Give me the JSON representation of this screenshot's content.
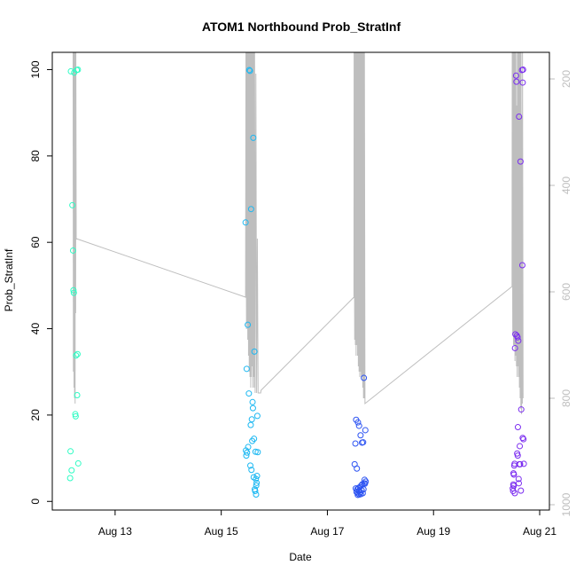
{
  "chart_data": {
    "type": "scatter",
    "title": "ATOM1 Northbound Prob_StratInf",
    "xlabel": "Date",
    "ylabel": "Prob_StratInf",
    "x_axis": {
      "type": "date",
      "range": [
        "2019-08-12T00:00",
        "2019-08-21T00:00"
      ],
      "tick_values": [
        "2019-08-13T00:00",
        "2019-08-15T00:00",
        "2019-08-17T00:00",
        "2019-08-19T00:00",
        "2019-08-21T00:00"
      ],
      "tick_labels": [
        "Aug 13",
        "Aug 15",
        "Aug 17",
        "Aug 19",
        "Aug 21"
      ]
    },
    "y_axis": {
      "range": [
        -2,
        104
      ],
      "ticks": [
        0,
        20,
        40,
        60,
        80,
        100
      ]
    },
    "y2_axis": {
      "range": [
        1010,
        150
      ],
      "reversed": true,
      "ticks": [
        200,
        400,
        600,
        800,
        1000
      ],
      "color": "#bebebe"
    },
    "grid": false,
    "legend": "none",
    "profile_series": {
      "axis": "y2",
      "color": "#bebebe",
      "data": [
        [
          "2019-08-12T05:00",
          150
        ],
        [
          "2019-08-12T05:08",
          750
        ],
        [
          "2019-08-12T05:12",
          150
        ],
        [
          "2019-08-12T05:25",
          780
        ],
        [
          "2019-08-12T05:28",
          150
        ],
        [
          "2019-08-12T05:40",
          800
        ],
        [
          "2019-08-12T05:45",
          150
        ],
        [
          "2019-08-12T05:55",
          810
        ],
        [
          "2019-08-12T06:00",
          150
        ],
        [
          "2019-08-12T06:10",
          640
        ],
        [
          "2019-08-12T06:15",
          150
        ],
        [
          "2019-08-12T06:25",
          500
        ],
        [
          "2019-08-15T11:00",
          610
        ],
        [
          "2019-08-15T11:10",
          150
        ],
        [
          "2019-08-15T11:25",
          670
        ],
        [
          "2019-08-15T11:30",
          150
        ],
        [
          "2019-08-15T11:40",
          660
        ],
        [
          "2019-08-15T11:45",
          150
        ],
        [
          "2019-08-15T12:00",
          690
        ],
        [
          "2019-08-15T12:05",
          150
        ],
        [
          "2019-08-15T12:20",
          720
        ],
        [
          "2019-08-15T12:25",
          150
        ],
        [
          "2019-08-15T12:40",
          750
        ],
        [
          "2019-08-15T12:45",
          150
        ],
        [
          "2019-08-15T13:00",
          760
        ],
        [
          "2019-08-15T13:05",
          150
        ],
        [
          "2019-08-15T13:20",
          780
        ],
        [
          "2019-08-15T13:25",
          150
        ],
        [
          "2019-08-15T13:40",
          760
        ],
        [
          "2019-08-15T13:45",
          150
        ],
        [
          "2019-08-15T14:00",
          740
        ],
        [
          "2019-08-15T14:05",
          150
        ],
        [
          "2019-08-15T14:20",
          780
        ],
        [
          "2019-08-15T14:25",
          150
        ],
        [
          "2019-08-15T14:40",
          760
        ],
        [
          "2019-08-15T14:45",
          150
        ],
        [
          "2019-08-15T15:00",
          780
        ],
        [
          "2019-08-15T15:05",
          150
        ],
        [
          "2019-08-15T15:20",
          790
        ],
        [
          "2019-08-15T15:40",
          190
        ],
        [
          "2019-08-15T16:00",
          790
        ],
        [
          "2019-08-15T16:20",
          500
        ],
        [
          "2019-08-15T16:40",
          790
        ],
        [
          "2019-08-15T17:20",
          790
        ],
        [
          "2019-08-15T17:50",
          790
        ],
        [
          "2019-08-15T18:00",
          785
        ],
        [
          "2019-08-17T12:00",
          610
        ],
        [
          "2019-08-17T12:05",
          150
        ],
        [
          "2019-08-17T12:20",
          690
        ],
        [
          "2019-08-17T12:25",
          150
        ],
        [
          "2019-08-17T12:40",
          700
        ],
        [
          "2019-08-17T12:45",
          150
        ],
        [
          "2019-08-17T13:00",
          720
        ],
        [
          "2019-08-17T13:05",
          150
        ],
        [
          "2019-08-17T13:20",
          700
        ],
        [
          "2019-08-17T13:25",
          150
        ],
        [
          "2019-08-17T13:40",
          720
        ],
        [
          "2019-08-17T13:45",
          150
        ],
        [
          "2019-08-17T14:00",
          740
        ],
        [
          "2019-08-17T14:05",
          150
        ],
        [
          "2019-08-17T14:20",
          750
        ],
        [
          "2019-08-17T14:25",
          150
        ],
        [
          "2019-08-17T14:40",
          760
        ],
        [
          "2019-08-17T14:45",
          150
        ],
        [
          "2019-08-17T15:00",
          750
        ],
        [
          "2019-08-17T15:05",
          150
        ],
        [
          "2019-08-17T15:20",
          760
        ],
        [
          "2019-08-17T15:25",
          150
        ],
        [
          "2019-08-17T15:40",
          760
        ],
        [
          "2019-08-17T15:45",
          150
        ],
        [
          "2019-08-17T16:00",
          780
        ],
        [
          "2019-08-17T16:05",
          150
        ],
        [
          "2019-08-17T16:20",
          800
        ],
        [
          "2019-08-17T16:25",
          150
        ],
        [
          "2019-08-17T16:40",
          800
        ],
        [
          "2019-08-17T16:45",
          150
        ],
        [
          "2019-08-17T17:00",
          810
        ],
        [
          "2019-08-20T11:30",
          590
        ],
        [
          "2019-08-20T11:35",
          150
        ],
        [
          "2019-08-20T11:50",
          680
        ],
        [
          "2019-08-20T11:55",
          150
        ],
        [
          "2019-08-20T12:10",
          700
        ],
        [
          "2019-08-20T12:15",
          150
        ],
        [
          "2019-08-20T12:30",
          700
        ],
        [
          "2019-08-20T12:35",
          150
        ],
        [
          "2019-08-20T12:50",
          730
        ],
        [
          "2019-08-20T12:55",
          150
        ],
        [
          "2019-08-20T13:10",
          720
        ],
        [
          "2019-08-20T13:15",
          150
        ],
        [
          "2019-08-20T13:30",
          740
        ],
        [
          "2019-08-20T13:40",
          250
        ],
        [
          "2019-08-20T13:50",
          760
        ],
        [
          "2019-08-20T13:55",
          150
        ],
        [
          "2019-08-20T14:10",
          740
        ],
        [
          "2019-08-20T14:15",
          150
        ],
        [
          "2019-08-20T14:30",
          760
        ],
        [
          "2019-08-20T14:35",
          150
        ],
        [
          "2019-08-20T14:50",
          780
        ],
        [
          "2019-08-20T14:55",
          150
        ],
        [
          "2019-08-20T15:10",
          800
        ],
        [
          "2019-08-20T15:15",
          150
        ],
        [
          "2019-08-20T15:30",
          820
        ],
        [
          "2019-08-20T15:35",
          150
        ],
        [
          "2019-08-20T15:50",
          830
        ],
        [
          "2019-08-20T16:00",
          270
        ],
        [
          "2019-08-20T16:10",
          810
        ],
        [
          "2019-08-20T16:15",
          150
        ],
        [
          "2019-08-20T16:30",
          800
        ]
      ]
    },
    "series": [
      {
        "color": "#2efcc4",
        "points": [
          [
            "2019-08-12T04:00",
            99.6
          ],
          [
            "2019-08-12T05:30",
            99.3
          ],
          [
            "2019-08-12T06:40",
            99.9
          ],
          [
            "2019-08-12T07:10",
            100
          ],
          [
            "2019-08-12T04:40",
            68.6
          ],
          [
            "2019-08-12T05:00",
            58.1
          ],
          [
            "2019-08-12T05:10",
            48.9
          ],
          [
            "2019-08-12T05:20",
            48.3
          ],
          [
            "2019-08-12T06:20",
            33.8
          ],
          [
            "2019-08-12T07:00",
            34.1
          ],
          [
            "2019-08-12T06:50",
            24.6
          ],
          [
            "2019-08-12T06:00",
            20.2
          ],
          [
            "2019-08-12T06:10",
            19.7
          ],
          [
            "2019-08-12T03:50",
            11.6
          ],
          [
            "2019-08-12T07:20",
            8.8
          ],
          [
            "2019-08-12T04:20",
            7.2
          ],
          [
            "2019-08-12T03:40",
            5.4
          ]
        ]
      },
      {
        "color": "#1cb8f2",
        "points": [
          [
            "2019-08-15T12:40",
            99.9
          ],
          [
            "2019-08-15T13:00",
            99.7
          ],
          [
            "2019-08-15T13:30",
            67.7
          ],
          [
            "2019-08-15T14:30",
            84.2
          ],
          [
            "2019-08-15T11:00",
            64.6
          ],
          [
            "2019-08-15T12:00",
            40.9
          ],
          [
            "2019-08-15T15:00",
            34.7
          ],
          [
            "2019-08-15T11:30",
            30.7
          ],
          [
            "2019-08-15T12:30",
            25.0
          ],
          [
            "2019-08-15T14:10",
            23.0
          ],
          [
            "2019-08-15T14:20",
            21.6
          ],
          [
            "2019-08-15T16:20",
            19.8
          ],
          [
            "2019-08-15T13:50",
            19.0
          ],
          [
            "2019-08-15T13:20",
            17.7
          ],
          [
            "2019-08-15T14:50",
            14.5
          ],
          [
            "2019-08-15T14:00",
            14.0
          ],
          [
            "2019-08-15T11:10",
            11.8
          ],
          [
            "2019-08-15T11:40",
            11.3
          ],
          [
            "2019-08-15T11:20",
            10.6
          ],
          [
            "2019-08-15T12:10",
            12.6
          ],
          [
            "2019-08-15T15:30",
            11.5
          ],
          [
            "2019-08-15T16:30",
            11.4
          ],
          [
            "2019-08-15T13:10",
            8.3
          ],
          [
            "2019-08-15T13:40",
            7.3
          ],
          [
            "2019-08-15T14:40",
            5.6
          ],
          [
            "2019-08-15T15:40",
            5.2
          ],
          [
            "2019-08-15T16:10",
            5.9
          ],
          [
            "2019-08-15T16:00",
            4.3
          ],
          [
            "2019-08-15T15:50",
            3.7
          ],
          [
            "2019-08-15T15:10",
            2.8
          ],
          [
            "2019-08-15T15:20",
            2.4
          ],
          [
            "2019-08-15T15:45",
            1.6
          ]
        ]
      },
      {
        "color": "#2c53f2",
        "points": [
          [
            "2019-08-17T16:30",
            28.6
          ],
          [
            "2019-08-17T13:00",
            18.9
          ],
          [
            "2019-08-17T13:50",
            18.3
          ],
          [
            "2019-08-17T14:20",
            17.5
          ],
          [
            "2019-08-17T17:10",
            16.5
          ],
          [
            "2019-08-17T15:00",
            15.3
          ],
          [
            "2019-08-17T15:40",
            13.6
          ],
          [
            "2019-08-17T16:10",
            13.7
          ],
          [
            "2019-08-17T12:40",
            13.4
          ],
          [
            "2019-08-17T12:20",
            8.6
          ],
          [
            "2019-08-17T13:20",
            7.6
          ],
          [
            "2019-08-17T16:50",
            5.0
          ],
          [
            "2019-08-17T17:20",
            4.6
          ],
          [
            "2019-08-17T16:40",
            4.2
          ],
          [
            "2019-08-17T17:00",
            4.1
          ],
          [
            "2019-08-17T15:50",
            4.0
          ],
          [
            "2019-08-17T15:20",
            3.7
          ],
          [
            "2019-08-17T14:40",
            3.3
          ],
          [
            "2019-08-17T14:00",
            3.1
          ],
          [
            "2019-08-17T13:30",
            2.8
          ],
          [
            "2019-08-17T12:50",
            3.0
          ],
          [
            "2019-08-17T15:30",
            2.6
          ],
          [
            "2019-08-17T16:20",
            2.8
          ],
          [
            "2019-08-17T14:10",
            2.4
          ],
          [
            "2019-08-17T14:50",
            2.1
          ],
          [
            "2019-08-17T13:10",
            2.2
          ],
          [
            "2019-08-17T13:40",
            1.9
          ],
          [
            "2019-08-17T14:30",
            1.6
          ],
          [
            "2019-08-17T15:10",
            1.7
          ],
          [
            "2019-08-17T16:00",
            1.9
          ],
          [
            "2019-08-17T13:45",
            1.5
          ]
        ]
      },
      {
        "color": "#7b2df0",
        "points": [
          [
            "2019-08-20T13:20",
            98.6
          ],
          [
            "2019-08-20T13:30",
            97.2
          ],
          [
            "2019-08-20T16:00",
            99.9
          ],
          [
            "2019-08-20T16:30",
            100
          ],
          [
            "2019-08-20T16:20",
            97.0
          ],
          [
            "2019-08-20T14:40",
            89.1
          ],
          [
            "2019-08-20T15:20",
            78.7
          ],
          [
            "2019-08-20T16:10",
            54.7
          ],
          [
            "2019-08-20T13:00",
            38.7
          ],
          [
            "2019-08-20T13:40",
            38.4
          ],
          [
            "2019-08-20T14:00",
            38.0
          ],
          [
            "2019-08-20T14:20",
            37.2
          ],
          [
            "2019-08-20T12:50",
            35.5
          ],
          [
            "2019-08-20T15:40",
            21.3
          ],
          [
            "2019-08-20T14:10",
            17.2
          ],
          [
            "2019-08-20T16:20",
            14.7
          ],
          [
            "2019-08-20T16:40",
            14.4
          ],
          [
            "2019-08-20T15:00",
            12.8
          ],
          [
            "2019-08-20T13:50",
            11.1
          ],
          [
            "2019-08-20T14:05",
            10.6
          ],
          [
            "2019-08-20T14:50",
            8.6
          ],
          [
            "2019-08-20T15:10",
            8.6
          ],
          [
            "2019-08-20T16:50",
            8.7
          ],
          [
            "2019-08-20T12:40",
            8.7
          ],
          [
            "2019-08-20T12:30",
            8.3
          ],
          [
            "2019-08-20T12:10",
            6.5
          ],
          [
            "2019-08-20T12:20",
            6.2
          ],
          [
            "2019-08-20T14:30",
            5.2
          ],
          [
            "2019-08-20T14:35",
            4.2
          ],
          [
            "2019-08-20T12:05",
            3.9
          ],
          [
            "2019-08-20T12:15",
            3.6
          ],
          [
            "2019-08-20T11:50",
            3.0
          ],
          [
            "2019-08-20T12:00",
            2.4
          ],
          [
            "2019-08-20T12:45",
            1.9
          ],
          [
            "2019-08-20T15:30",
            2.5
          ]
        ]
      }
    ]
  }
}
